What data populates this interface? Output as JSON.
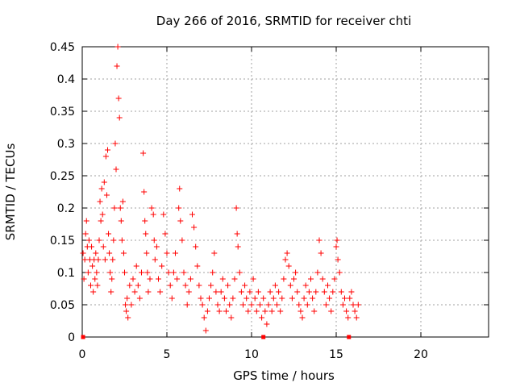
{
  "chart_data": {
    "type": "scatter",
    "title": "Day 266 of 2016, SRMTID for receiver chti",
    "xlabel": "GPS time / hours",
    "ylabel": "SRMTID / TECUs",
    "xlim": [
      0,
      24
    ],
    "ylim": [
      0,
      0.45
    ],
    "x_ticks": [
      0,
      5,
      10,
      15,
      20
    ],
    "x_tick_labels": [
      "0",
      "5",
      "10",
      "15",
      "20"
    ],
    "y_ticks": [
      0,
      0.05,
      0.1,
      0.15,
      0.2,
      0.25,
      0.3,
      0.35,
      0.4,
      0.45
    ],
    "y_tick_labels": [
      "0",
      "0.05",
      "0.1",
      "0.15",
      "0.2",
      "0.25",
      "0.3",
      "0.35",
      "0.4",
      "0.45"
    ],
    "grid": true,
    "marker": "+",
    "series_color": "#ff0000",
    "baseline_markers_x": [
      0.05,
      10.7,
      15.75
    ],
    "series": [
      {
        "name": "SRMTID",
        "points": [
          [
            0.05,
            0.13
          ],
          [
            0.1,
            0.09
          ],
          [
            0.15,
            0.12
          ],
          [
            0.2,
            0.16
          ],
          [
            0.25,
            0.18
          ],
          [
            0.3,
            0.14
          ],
          [
            0.35,
            0.1
          ],
          [
            0.4,
            0.15
          ],
          [
            0.45,
            0.12
          ],
          [
            0.5,
            0.08
          ],
          [
            0.55,
            0.14
          ],
          [
            0.6,
            0.11
          ],
          [
            0.65,
            0.07
          ],
          [
            0.7,
            0.12
          ],
          [
            0.75,
            0.09
          ],
          [
            0.8,
            0.13
          ],
          [
            0.85,
            0.1
          ],
          [
            0.9,
            0.08
          ],
          [
            0.95,
            0.12
          ],
          [
            1.0,
            0.15
          ],
          [
            1.05,
            0.21
          ],
          [
            1.1,
            0.18
          ],
          [
            1.15,
            0.23
          ],
          [
            1.2,
            0.19
          ],
          [
            1.25,
            0.14
          ],
          [
            1.3,
            0.24
          ],
          [
            1.35,
            0.12
          ],
          [
            1.4,
            0.28
          ],
          [
            1.45,
            0.22
          ],
          [
            1.5,
            0.29
          ],
          [
            1.55,
            0.16
          ],
          [
            1.6,
            0.13
          ],
          [
            1.65,
            0.1
          ],
          [
            1.7,
            0.07
          ],
          [
            1.75,
            0.09
          ],
          [
            1.8,
            0.12
          ],
          [
            1.85,
            0.15
          ],
          [
            1.9,
            0.2
          ],
          [
            1.95,
            0.3
          ],
          [
            2.0,
            0.26
          ],
          [
            2.05,
            0.42
          ],
          [
            2.1,
            0.45
          ],
          [
            2.15,
            0.37
          ],
          [
            2.2,
            0.34
          ],
          [
            2.25,
            0.2
          ],
          [
            2.3,
            0.18
          ],
          [
            2.35,
            0.15
          ],
          [
            2.4,
            0.21
          ],
          [
            2.45,
            0.13
          ],
          [
            2.5,
            0.1
          ],
          [
            2.55,
            0.05
          ],
          [
            2.6,
            0.04
          ],
          [
            2.65,
            0.06
          ],
          [
            2.7,
            0.03
          ],
          [
            2.8,
            0.08
          ],
          [
            2.9,
            0.05
          ],
          [
            3.0,
            0.09
          ],
          [
            3.1,
            0.07
          ],
          [
            3.2,
            0.11
          ],
          [
            3.3,
            0.08
          ],
          [
            3.4,
            0.06
          ],
          [
            3.5,
            0.1
          ],
          [
            3.6,
            0.285
          ],
          [
            3.65,
            0.225
          ],
          [
            3.7,
            0.18
          ],
          [
            3.75,
            0.16
          ],
          [
            3.8,
            0.13
          ],
          [
            3.85,
            0.1
          ],
          [
            3.9,
            0.07
          ],
          [
            4.0,
            0.09
          ],
          [
            4.1,
            0.2
          ],
          [
            4.2,
            0.19
          ],
          [
            4.25,
            0.15
          ],
          [
            4.3,
            0.12
          ],
          [
            4.4,
            0.14
          ],
          [
            4.5,
            0.09
          ],
          [
            4.6,
            0.07
          ],
          [
            4.7,
            0.11
          ],
          [
            4.8,
            0.19
          ],
          [
            4.9,
            0.16
          ],
          [
            5.0,
            0.13
          ],
          [
            5.1,
            0.1
          ],
          [
            5.2,
            0.08
          ],
          [
            5.3,
            0.06
          ],
          [
            5.4,
            0.1
          ],
          [
            5.5,
            0.13
          ],
          [
            5.6,
            0.09
          ],
          [
            5.7,
            0.2
          ],
          [
            5.75,
            0.23
          ],
          [
            5.8,
            0.18
          ],
          [
            5.9,
            0.15
          ],
          [
            6.0,
            0.1
          ],
          [
            6.1,
            0.08
          ],
          [
            6.2,
            0.05
          ],
          [
            6.3,
            0.07
          ],
          [
            6.4,
            0.09
          ],
          [
            6.5,
            0.19
          ],
          [
            6.6,
            0.17
          ],
          [
            6.7,
            0.14
          ],
          [
            6.8,
            0.11
          ],
          [
            6.9,
            0.08
          ],
          [
            7.0,
            0.06
          ],
          [
            7.1,
            0.05
          ],
          [
            7.2,
            0.03
          ],
          [
            7.3,
            0.01
          ],
          [
            7.4,
            0.04
          ],
          [
            7.5,
            0.06
          ],
          [
            7.6,
            0.08
          ],
          [
            7.7,
            0.1
          ],
          [
            7.8,
            0.13
          ],
          [
            7.9,
            0.07
          ],
          [
            8.0,
            0.05
          ],
          [
            8.1,
            0.04
          ],
          [
            8.2,
            0.07
          ],
          [
            8.3,
            0.09
          ],
          [
            8.4,
            0.06
          ],
          [
            8.5,
            0.04
          ],
          [
            8.6,
            0.08
          ],
          [
            8.7,
            0.05
          ],
          [
            8.8,
            0.03
          ],
          [
            8.9,
            0.06
          ],
          [
            9.0,
            0.09
          ],
          [
            9.1,
            0.2
          ],
          [
            9.15,
            0.16
          ],
          [
            9.2,
            0.14
          ],
          [
            9.3,
            0.1
          ],
          [
            9.4,
            0.07
          ],
          [
            9.5,
            0.05
          ],
          [
            9.6,
            0.08
          ],
          [
            9.7,
            0.06
          ],
          [
            9.8,
            0.04
          ],
          [
            9.9,
            0.07
          ],
          [
            10.0,
            0.05
          ],
          [
            10.1,
            0.09
          ],
          [
            10.2,
            0.06
          ],
          [
            10.3,
            0.04
          ],
          [
            10.4,
            0.07
          ],
          [
            10.5,
            0.05
          ],
          [
            10.6,
            0.03
          ],
          [
            10.7,
            0.06
          ],
          [
            10.8,
            0.04
          ],
          [
            10.9,
            0.02
          ],
          [
            11.0,
            0.05
          ],
          [
            11.1,
            0.07
          ],
          [
            11.2,
            0.04
          ],
          [
            11.3,
            0.06
          ],
          [
            11.4,
            0.08
          ],
          [
            11.5,
            0.05
          ],
          [
            11.6,
            0.07
          ],
          [
            11.7,
            0.04
          ],
          [
            11.8,
            0.06
          ],
          [
            11.9,
            0.09
          ],
          [
            12.0,
            0.12
          ],
          [
            12.1,
            0.13
          ],
          [
            12.2,
            0.11
          ],
          [
            12.3,
            0.08
          ],
          [
            12.4,
            0.06
          ],
          [
            12.5,
            0.09
          ],
          [
            12.6,
            0.1
          ],
          [
            12.7,
            0.07
          ],
          [
            12.8,
            0.05
          ],
          [
            12.9,
            0.04
          ],
          [
            13.0,
            0.03
          ],
          [
            13.1,
            0.06
          ],
          [
            13.2,
            0.08
          ],
          [
            13.3,
            0.05
          ],
          [
            13.4,
            0.07
          ],
          [
            13.5,
            0.09
          ],
          [
            13.6,
            0.06
          ],
          [
            13.7,
            0.04
          ],
          [
            13.8,
            0.07
          ],
          [
            13.9,
            0.1
          ],
          [
            14.0,
            0.15
          ],
          [
            14.1,
            0.13
          ],
          [
            14.2,
            0.09
          ],
          [
            14.3,
            0.07
          ],
          [
            14.4,
            0.05
          ],
          [
            14.5,
            0.08
          ],
          [
            14.6,
            0.06
          ],
          [
            14.7,
            0.04
          ],
          [
            14.8,
            0.07
          ],
          [
            14.9,
            0.09
          ],
          [
            15.0,
            0.14
          ],
          [
            15.05,
            0.15
          ],
          [
            15.1,
            0.12
          ],
          [
            15.2,
            0.1
          ],
          [
            15.3,
            0.07
          ],
          [
            15.4,
            0.05
          ],
          [
            15.5,
            0.06
          ],
          [
            15.6,
            0.04
          ],
          [
            15.7,
            0.03
          ],
          [
            15.8,
            0.06
          ],
          [
            15.9,
            0.07
          ],
          [
            16.0,
            0.05
          ],
          [
            16.1,
            0.04
          ],
          [
            16.2,
            0.03
          ],
          [
            16.3,
            0.05
          ]
        ]
      }
    ]
  }
}
